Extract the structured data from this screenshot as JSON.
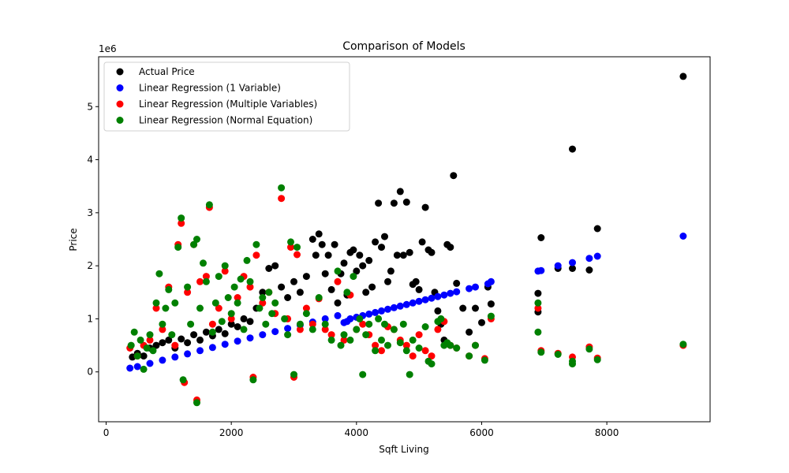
{
  "chart_data": {
    "type": "scatter",
    "title": "Comparison of Models",
    "xlabel": "Sqft Living",
    "ylabel": "Price",
    "y_offset_text": "1e6",
    "xlim": [
      -120,
      9650
    ],
    "ylim": [
      -0.94,
      5.94
    ],
    "xticks": [
      0,
      2000,
      4000,
      6000,
      8000
    ],
    "xtick_labels": [
      "0",
      "2000",
      "4000",
      "6000",
      "8000"
    ],
    "yticks": [
      0,
      1,
      2,
      3,
      4,
      5
    ],
    "ytick_labels": [
      "0",
      "1",
      "2",
      "3",
      "4",
      "5"
    ],
    "grid": false,
    "legend_position": "top-left",
    "series": [
      {
        "name": "Actual Price",
        "color": "#000000",
        "points": [
          [
            420,
            0.28
          ],
          [
            500,
            0.35
          ],
          [
            600,
            0.3
          ],
          [
            700,
            0.45
          ],
          [
            800,
            0.5
          ],
          [
            900,
            0.55
          ],
          [
            1000,
            0.6
          ],
          [
            1100,
            0.45
          ],
          [
            1200,
            0.62
          ],
          [
            1300,
            0.55
          ],
          [
            1400,
            0.7
          ],
          [
            1500,
            0.6
          ],
          [
            1600,
            0.75
          ],
          [
            1700,
            0.68
          ],
          [
            1800,
            0.8
          ],
          [
            1900,
            0.72
          ],
          [
            2000,
            0.9
          ],
          [
            2100,
            0.85
          ],
          [
            2200,
            1.0
          ],
          [
            2300,
            0.95
          ],
          [
            2400,
            1.2
          ],
          [
            2500,
            1.5
          ],
          [
            2600,
            1.95
          ],
          [
            2700,
            2.0
          ],
          [
            2800,
            1.6
          ],
          [
            2900,
            1.4
          ],
          [
            3000,
            1.7
          ],
          [
            3100,
            1.5
          ],
          [
            3200,
            1.8
          ],
          [
            3300,
            2.5
          ],
          [
            3350,
            2.2
          ],
          [
            3400,
            2.6
          ],
          [
            3450,
            2.4
          ],
          [
            3500,
            1.85
          ],
          [
            3550,
            2.2
          ],
          [
            3600,
            1.55
          ],
          [
            3650,
            2.4
          ],
          [
            3700,
            1.3
          ],
          [
            3750,
            1.85
          ],
          [
            3800,
            2.05
          ],
          [
            3850,
            1.45
          ],
          [
            3900,
            2.25
          ],
          [
            3950,
            2.3
          ],
          [
            4000,
            1.9
          ],
          [
            4050,
            2.2
          ],
          [
            4100,
            2.0
          ],
          [
            4150,
            1.5
          ],
          [
            4200,
            2.1
          ],
          [
            4250,
            1.6
          ],
          [
            4300,
            2.45
          ],
          [
            4350,
            3.18
          ],
          [
            4400,
            2.35
          ],
          [
            4450,
            2.55
          ],
          [
            4500,
            1.7
          ],
          [
            4550,
            1.9
          ],
          [
            4600,
            3.18
          ],
          [
            4650,
            2.2
          ],
          [
            4700,
            3.4
          ],
          [
            4750,
            2.2
          ],
          [
            4800,
            3.2
          ],
          [
            4850,
            2.25
          ],
          [
            4900,
            1.65
          ],
          [
            4950,
            1.7
          ],
          [
            5000,
            1.55
          ],
          [
            5050,
            2.45
          ],
          [
            5100,
            3.1
          ],
          [
            5150,
            2.3
          ],
          [
            5200,
            2.25
          ],
          [
            5250,
            1.5
          ],
          [
            5300,
            1.15
          ],
          [
            5350,
            0.9
          ],
          [
            5400,
            0.6
          ],
          [
            5450,
            2.4
          ],
          [
            5500,
            2.35
          ],
          [
            5550,
            3.7
          ],
          [
            5600,
            1.67
          ],
          [
            5700,
            1.2
          ],
          [
            5800,
            0.75
          ],
          [
            5900,
            1.2
          ],
          [
            6000,
            0.93
          ],
          [
            6100,
            1.6
          ],
          [
            6150,
            1.28
          ],
          [
            6900,
            1.48
          ],
          [
            6950,
            2.53
          ],
          [
            7220,
            1.95
          ],
          [
            7450,
            4.2
          ],
          [
            7450,
            1.95
          ],
          [
            7720,
            1.92
          ],
          [
            7850,
            2.7
          ],
          [
            6900,
            1.13
          ],
          [
            9220,
            5.57
          ]
        ]
      },
      {
        "name": "Linear Regression (1 Variable)",
        "color": "#0000ff",
        "points": [
          [
            380,
            0.07
          ],
          [
            500,
            0.1
          ],
          [
            700,
            0.16
          ],
          [
            900,
            0.22
          ],
          [
            1100,
            0.28
          ],
          [
            1300,
            0.34
          ],
          [
            1500,
            0.4
          ],
          [
            1700,
            0.46
          ],
          [
            1900,
            0.52
          ],
          [
            2100,
            0.58
          ],
          [
            2300,
            0.64
          ],
          [
            2500,
            0.7
          ],
          [
            2700,
            0.76
          ],
          [
            2900,
            0.82
          ],
          [
            3100,
            0.88
          ],
          [
            3300,
            0.94
          ],
          [
            3500,
            1.0
          ],
          [
            3700,
            1.06
          ],
          [
            3800,
            0.93
          ],
          [
            3850,
            0.95
          ],
          [
            3900,
            1.0
          ],
          [
            4000,
            1.03
          ],
          [
            4100,
            1.06
          ],
          [
            4200,
            1.09
          ],
          [
            4300,
            1.12
          ],
          [
            4400,
            1.15
          ],
          [
            4500,
            1.18
          ],
          [
            4600,
            1.21
          ],
          [
            4700,
            1.24
          ],
          [
            4800,
            1.27
          ],
          [
            4900,
            1.3
          ],
          [
            5000,
            1.33
          ],
          [
            5100,
            1.36
          ],
          [
            5200,
            1.39
          ],
          [
            5300,
            1.42
          ],
          [
            5400,
            1.45
          ],
          [
            5500,
            1.48
          ],
          [
            5600,
            1.51
          ],
          [
            5800,
            1.57
          ],
          [
            5900,
            1.6
          ],
          [
            6100,
            1.66
          ],
          [
            6150,
            1.7
          ],
          [
            6900,
            1.9
          ],
          [
            6950,
            1.91
          ],
          [
            7220,
            2.0
          ],
          [
            7450,
            2.06
          ],
          [
            7720,
            2.14
          ],
          [
            7850,
            2.18
          ],
          [
            9220,
            2.56
          ]
        ]
      },
      {
        "name": "Linear Regression (Multiple Variables)",
        "color": "#ff0000",
        "points": [
          [
            380,
            0.45
          ],
          [
            500,
            0.3
          ],
          [
            600,
            0.5
          ],
          [
            700,
            0.6
          ],
          [
            800,
            1.2
          ],
          [
            900,
            0.8
          ],
          [
            1000,
            1.6
          ],
          [
            1100,
            0.5
          ],
          [
            1150,
            2.4
          ],
          [
            1200,
            2.8
          ],
          [
            1250,
            -0.2
          ],
          [
            1300,
            1.5
          ],
          [
            1400,
            2.4
          ],
          [
            1450,
            -0.53
          ],
          [
            1500,
            1.7
          ],
          [
            1600,
            1.8
          ],
          [
            1650,
            3.1
          ],
          [
            1700,
            0.9
          ],
          [
            1800,
            1.2
          ],
          [
            1900,
            1.9
          ],
          [
            2000,
            1.0
          ],
          [
            2100,
            1.4
          ],
          [
            2200,
            1.8
          ],
          [
            2300,
            1.6
          ],
          [
            2350,
            -0.1
          ],
          [
            2400,
            2.2
          ],
          [
            2500,
            1.3
          ],
          [
            2600,
            1.5
          ],
          [
            2700,
            1.1
          ],
          [
            2800,
            3.27
          ],
          [
            2900,
            1.0
          ],
          [
            2950,
            2.35
          ],
          [
            3000,
            -0.1
          ],
          [
            3050,
            2.21
          ],
          [
            3100,
            0.8
          ],
          [
            3200,
            1.2
          ],
          [
            3300,
            0.9
          ],
          [
            3400,
            1.38
          ],
          [
            3500,
            0.8
          ],
          [
            3600,
            0.7
          ],
          [
            3700,
            1.7
          ],
          [
            3800,
            0.6
          ],
          [
            3900,
            1.45
          ],
          [
            4000,
            0.8
          ],
          [
            4100,
            0.9
          ],
          [
            4200,
            0.7
          ],
          [
            4300,
            0.5
          ],
          [
            4400,
            0.4
          ],
          [
            4500,
            0.85
          ],
          [
            4600,
            0.8
          ],
          [
            4700,
            0.6
          ],
          [
            4800,
            0.5
          ],
          [
            4900,
            0.3
          ],
          [
            5000,
            0.7
          ],
          [
            5100,
            0.4
          ],
          [
            5200,
            0.3
          ],
          [
            5300,
            0.8
          ],
          [
            5400,
            0.95
          ],
          [
            5500,
            0.5
          ],
          [
            5600,
            0.45
          ],
          [
            5800,
            0.3
          ],
          [
            5900,
            0.5
          ],
          [
            6050,
            0.25
          ],
          [
            6150,
            1.0
          ],
          [
            6900,
            1.2
          ],
          [
            6950,
            0.4
          ],
          [
            7220,
            0.35
          ],
          [
            7450,
            0.28
          ],
          [
            7720,
            0.47
          ],
          [
            7850,
            0.26
          ],
          [
            9220,
            0.5
          ]
        ]
      },
      {
        "name": "Linear Regression (Normal Equation)",
        "color": "#008000",
        "points": [
          [
            400,
            0.5
          ],
          [
            450,
            0.75
          ],
          [
            500,
            0.3
          ],
          [
            550,
            0.6
          ],
          [
            600,
            0.05
          ],
          [
            650,
            0.45
          ],
          [
            700,
            0.7
          ],
          [
            750,
            0.4
          ],
          [
            800,
            1.3
          ],
          [
            850,
            1.85
          ],
          [
            900,
            0.9
          ],
          [
            950,
            1.2
          ],
          [
            1000,
            1.55
          ],
          [
            1050,
            0.7
          ],
          [
            1100,
            1.3
          ],
          [
            1150,
            2.35
          ],
          [
            1200,
            2.9
          ],
          [
            1230,
            -0.15
          ],
          [
            1300,
            1.6
          ],
          [
            1350,
            0.9
          ],
          [
            1400,
            2.4
          ],
          [
            1450,
            -0.58
          ],
          [
            1450,
            2.5
          ],
          [
            1500,
            1.2
          ],
          [
            1550,
            2.05
          ],
          [
            1600,
            1.7
          ],
          [
            1650,
            3.15
          ],
          [
            1700,
            0.75
          ],
          [
            1750,
            1.3
          ],
          [
            1800,
            1.8
          ],
          [
            1850,
            0.95
          ],
          [
            1900,
            2.0
          ],
          [
            1950,
            1.4
          ],
          [
            2000,
            1.1
          ],
          [
            2050,
            1.6
          ],
          [
            2100,
            1.3
          ],
          [
            2150,
            1.75
          ],
          [
            2200,
            0.8
          ],
          [
            2250,
            2.1
          ],
          [
            2300,
            1.7
          ],
          [
            2350,
            -0.15
          ],
          [
            2400,
            2.4
          ],
          [
            2450,
            1.2
          ],
          [
            2500,
            1.4
          ],
          [
            2550,
            0.9
          ],
          [
            2600,
            1.5
          ],
          [
            2650,
            1.1
          ],
          [
            2700,
            1.3
          ],
          [
            2800,
            3.47
          ],
          [
            2850,
            1.0
          ],
          [
            2900,
            0.7
          ],
          [
            2950,
            2.45
          ],
          [
            3000,
            -0.05
          ],
          [
            3050,
            2.35
          ],
          [
            3100,
            0.9
          ],
          [
            3200,
            1.1
          ],
          [
            3300,
            0.8
          ],
          [
            3400,
            1.4
          ],
          [
            3500,
            0.9
          ],
          [
            3600,
            0.6
          ],
          [
            3700,
            1.9
          ],
          [
            3750,
            0.5
          ],
          [
            3800,
            0.7
          ],
          [
            3850,
            1.5
          ],
          [
            3900,
            0.6
          ],
          [
            3950,
            1.8
          ],
          [
            4000,
            0.8
          ],
          [
            4050,
            1.0
          ],
          [
            4100,
            -0.05
          ],
          [
            4150,
            0.7
          ],
          [
            4200,
            0.9
          ],
          [
            4300,
            0.4
          ],
          [
            4350,
            1.0
          ],
          [
            4400,
            0.6
          ],
          [
            4450,
            0.9
          ],
          [
            4500,
            0.5
          ],
          [
            4600,
            0.8
          ],
          [
            4700,
            0.55
          ],
          [
            4750,
            0.9
          ],
          [
            4800,
            0.4
          ],
          [
            4850,
            -0.05
          ],
          [
            4900,
            0.6
          ],
          [
            5000,
            0.45
          ],
          [
            5100,
            0.85
          ],
          [
            5150,
            0.2
          ],
          [
            5200,
            0.15
          ],
          [
            5300,
            0.95
          ],
          [
            5350,
            1.0
          ],
          [
            5400,
            0.5
          ],
          [
            5450,
            0.55
          ],
          [
            5500,
            0.5
          ],
          [
            5600,
            0.45
          ],
          [
            5800,
            0.3
          ],
          [
            5900,
            0.5
          ],
          [
            6050,
            0.22
          ],
          [
            6150,
            1.05
          ],
          [
            6900,
            1.3
          ],
          [
            6900,
            0.75
          ],
          [
            6950,
            0.37
          ],
          [
            7220,
            0.33
          ],
          [
            7450,
            0.2
          ],
          [
            7450,
            0.15
          ],
          [
            7720,
            0.43
          ],
          [
            7850,
            0.23
          ],
          [
            9220,
            0.52
          ]
        ]
      }
    ]
  }
}
